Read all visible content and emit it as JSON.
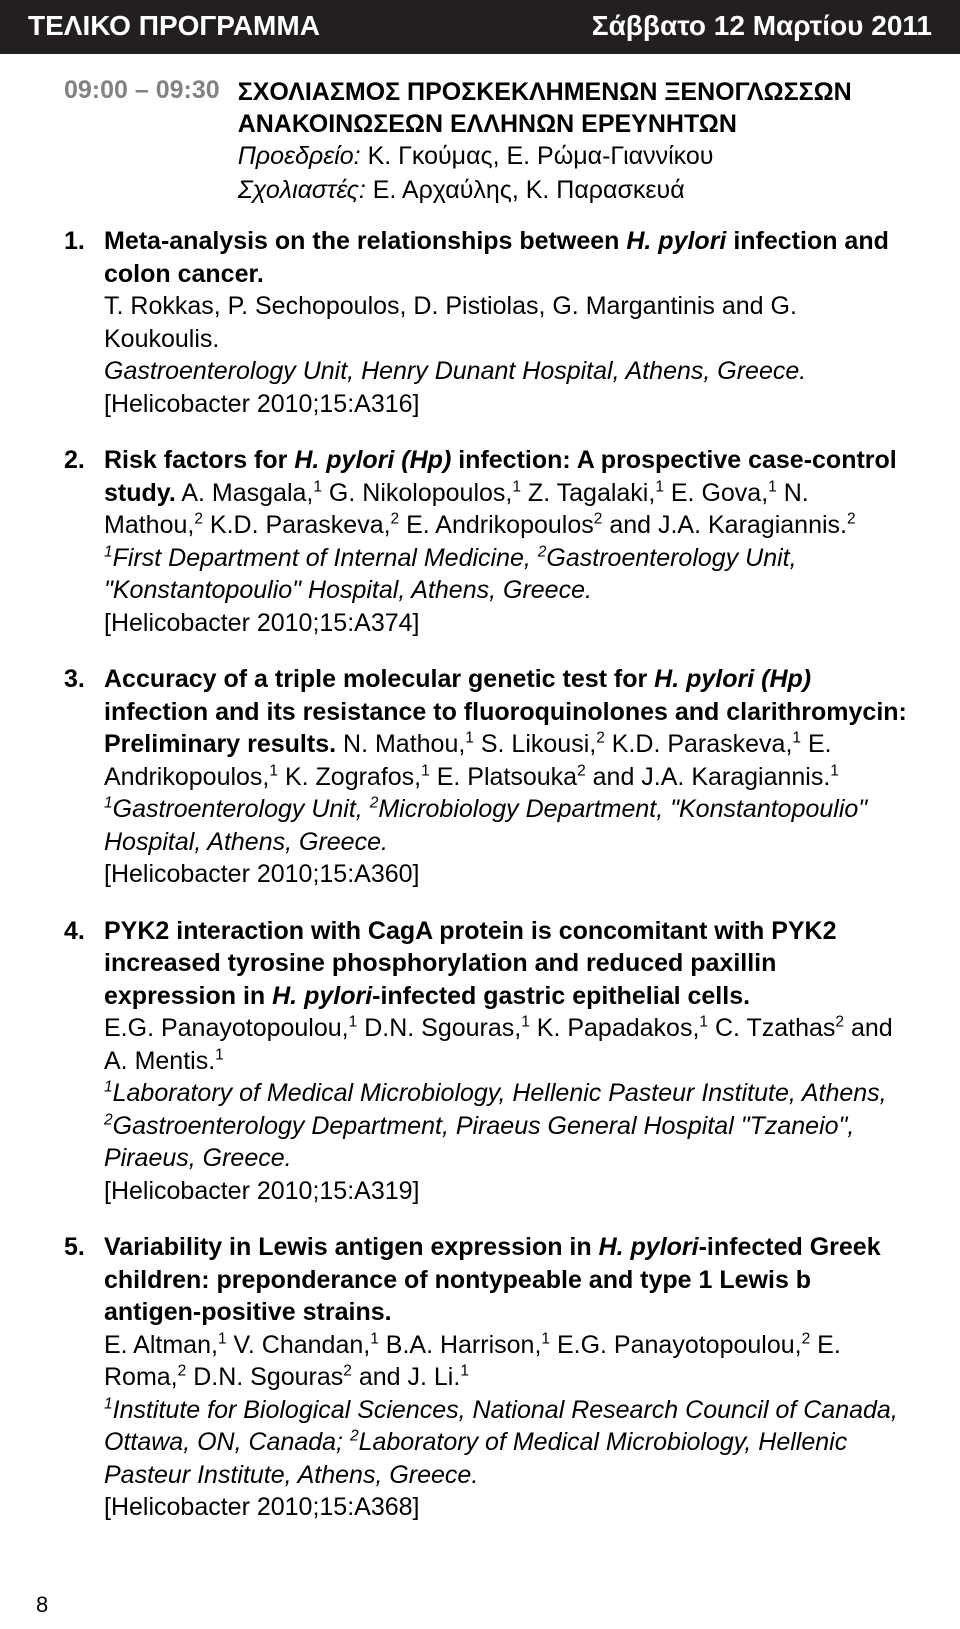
{
  "colors": {
    "header_bg": "#231f20",
    "header_text": "#ffffff",
    "time_text": "#808285",
    "body_text": "#000000",
    "page_bg": "#ffffff"
  },
  "typography": {
    "base_font": "Arial, Helvetica, sans-serif",
    "header_size_pt": 28,
    "body_size_pt": 25
  },
  "header": {
    "left": "ΤΕΛΙΚΟ ΠΡΟΓΡΑΜΜΑ",
    "right": "Σάββατο 12 Μαρτίου 2011"
  },
  "session": {
    "time": "09:00 – 09:30",
    "title_line1": "ΣΧΟΛΙΑΣΜΟΣ ΠΡΟΣΚΕΚΛΗΜΕΝΩΝ ΞΕΝΟΓΛΩΣΣΩΝ",
    "title_line2": "ΑΝΑΚΟΙΝΩΣΕΩΝ ΕΛΛΗΝΩΝ ΕΡΕΥΝΗΤΩΝ",
    "chair_label": "Προεδρείο:",
    "chair_names": " Κ. Γκούμας, Ε. Ρώμα-Γιαννίκου",
    "discussant_label": "Σχολιαστές:",
    "discussant_names": " Ε. Αρχαύλης, Κ. Παρασκευά"
  },
  "items": [
    {
      "num": "1.",
      "title_html": "Meta-analysis on the relationships between <span class=\"italic\">H. pylori</span>   infection and colon cancer.",
      "authors_html": "T. Rokkas, P. Sechopoulos, D. Pistiolas, G. Margantinis and G. Koukoulis.",
      "affil_html": "Gastroenterology Unit, Henry Dunant Hospital, Athens, Greece.",
      "ref": "[Helicobacter 2010;15:A316]"
    },
    {
      "num": "2.",
      "title_html": "Risk factors for <span class=\"italic\">H. pylori (Hp)</span> infection: A prospective case-control study.",
      "authors_html": "A. Masgala,<sup>1</sup> G. Nikolopoulos,<sup>1</sup> Z. Tagalaki,<sup>1</sup> E. Gova,<sup>1</sup> N. Mathou,<sup>2</sup> K.D. Paraskeva,<sup>2</sup> E. Andrikopoulos<sup>2</sup> and J.A. Karagiannis.<sup>2</sup>",
      "affil_html": "<sup>1</sup>First Department of Internal Medicine, <sup>2</sup>Gastroenterology Unit, \"Konstantopoulio\" Hospital, Athens, Greece.",
      "ref": "[Helicobacter 2010;15:A374]"
    },
    {
      "num": "3.",
      "title_html": "Accuracy of a triple molecular genetic test for <span class=\"italic\">H. pylori (Hp)</span> infection and its resistance to fluoroquinolones and clarithromycin: Preliminary results.",
      "authors_html": "N. Mathou,<sup>1</sup> S. Likousi,<sup>2</sup> K.D. Paraskeva,<sup>1</sup> E. Andrikopoulos,<sup>1</sup> K. Zografos,<sup>1</sup> E. Platsouka<sup>2</sup> and J.A. Karagiannis.<sup>1</sup>",
      "affil_html": "<sup>1</sup>Gastroenterology Unit, <sup>2</sup>Microbiology Department, \"Konstantopoulio\" Hospital, Athens, Greece.",
      "ref": "[Helicobacter 2010;15:A360]"
    },
    {
      "num": "4.",
      "title_html": "PYK2 interaction with CagA protein is concomitant with PYK2 increased tyrosine phosphorylation and reduced paxillin expression in <span class=\"italic\">H. pylori</span>-infected gastric epithelial cells.",
      "authors_html": "E.G. Panayotopoulou,<sup>1</sup> D.N. Sgouras,<sup>1</sup> K. Papadakos,<sup>1</sup> C. Tzathas<sup>2</sup> and A. Mentis.<sup>1</sup>",
      "affil_html": "<sup>1</sup>Laboratory of Medical Microbiology, Hellenic Pasteur Institute, Athens, <sup>2</sup>Gastroenterology Department, Piraeus General Hospital \"Tzaneio\", Piraeus, Greece.",
      "ref": "[Helicobacter 2010;15:A319]"
    },
    {
      "num": "5.",
      "title_html": "Variability in Lewis antigen expression in <span class=\"italic\">H. pylori</span>-infected Greek children: preponderance of nontypeable and type 1 Lewis b antigen-positive strains.",
      "authors_html": "E. Altman,<sup>1</sup> V. Chandan,<sup>1</sup> B.A. Harrison,<sup>1</sup> E.G. Panayotopoulou,<sup>2</sup> E. Roma,<sup>2</sup> D.N. Sgouras<sup>2</sup> and J. Li.<sup>1</sup>",
      "affil_html": "<sup>1</sup>Institute for Biological Sciences, National Research Council of Canada, Ottawa, ON, Canada; <sup>2</sup>Laboratory of Medical Microbiology, Hellenic Pasteur Institute, Athens, Greece.",
      "ref": "[Helicobacter 2010;15:A368]"
    }
  ],
  "page_number": "8"
}
